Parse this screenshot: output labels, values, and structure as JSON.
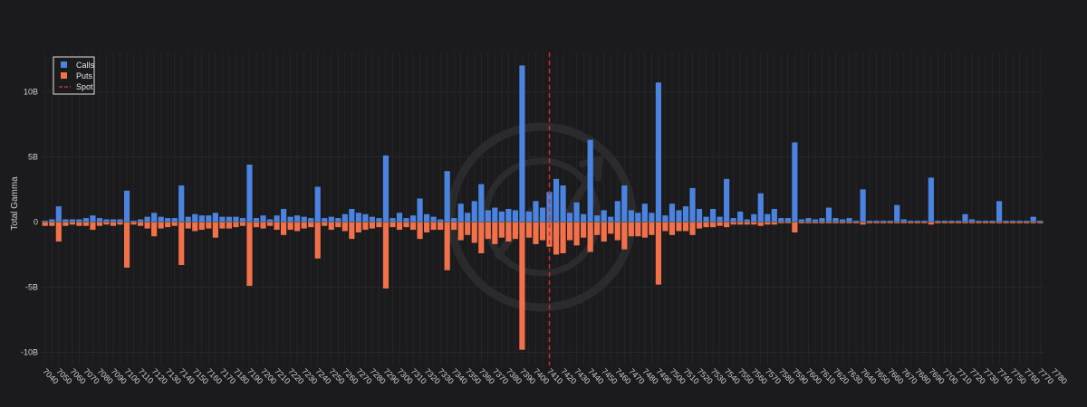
{
  "chart_data": {
    "type": "bar",
    "barmode": "relative",
    "title": "",
    "xlabel": "",
    "ylabel": "Total Gamma",
    "ylim": [
      -11,
      13
    ],
    "yticks": [
      {
        "value": 10,
        "label": "10B"
      },
      {
        "value": 5,
        "label": "5B"
      },
      {
        "value": 0,
        "label": "0"
      },
      {
        "value": -5,
        "label": "-5B"
      },
      {
        "value": -10,
        "label": "-10B"
      }
    ],
    "grid": true,
    "legend_position": "top-left",
    "colors": {
      "calls": "#4a84e0",
      "puts": "#f2714a",
      "spot": "#d42a2a",
      "background": "#1b1b1d",
      "grid": "#2a2a2c"
    },
    "spot": {
      "name": "Spot",
      "value": 7410
    },
    "x_start": 7040,
    "x_step": 5,
    "x_tick_labels": [
      "7040",
      "7050",
      "7060",
      "7070",
      "7080",
      "7090",
      "7100",
      "7110",
      "7120",
      "7130",
      "7140",
      "7150",
      "7160",
      "7170",
      "7180",
      "7190",
      "7200",
      "7210",
      "7220",
      "7230",
      "7240",
      "7250",
      "7260",
      "7270",
      "7280",
      "7290",
      "7300",
      "7310",
      "7320",
      "7330",
      "7340",
      "7350",
      "7360",
      "7370",
      "7380",
      "7390",
      "7400",
      "7410",
      "7420",
      "7430",
      "7440",
      "7450",
      "7460",
      "7470",
      "7480",
      "7490",
      "7500",
      "7510",
      "7520",
      "7530",
      "7540",
      "7550",
      "7560",
      "7570",
      "7580",
      "7590",
      "7600",
      "7610",
      "7620",
      "7630",
      "7640",
      "7650",
      "7660",
      "7670",
      "7680",
      "7690",
      "7700",
      "7710",
      "7720",
      "7730",
      "7740",
      "7750",
      "7760",
      "7770",
      "7780"
    ],
    "series": [
      {
        "name": "Calls",
        "values": [
          0.1,
          0.2,
          1.2,
          0.2,
          0.2,
          0.2,
          0.3,
          0.5,
          0.3,
          0.2,
          0.2,
          0.2,
          2.4,
          0.1,
          0.2,
          0.4,
          0.7,
          0.4,
          0.3,
          0.3,
          2.8,
          0.4,
          0.6,
          0.5,
          0.5,
          0.7,
          0.4,
          0.4,
          0.4,
          0.3,
          4.4,
          0.3,
          0.5,
          0.2,
          0.5,
          1.0,
          0.4,
          0.5,
          0.4,
          0.3,
          2.7,
          0.3,
          0.4,
          0.3,
          0.6,
          1.0,
          0.7,
          0.6,
          0.4,
          0.3,
          5.1,
          0.3,
          0.7,
          0.3,
          0.5,
          1.8,
          0.6,
          0.4,
          0.2,
          3.9,
          0.3,
          1.4,
          0.7,
          1.6,
          2.9,
          0.9,
          1.1,
          0.8,
          1.0,
          0.9,
          12.0,
          0.8,
          1.6,
          1.1,
          2.3,
          3.3,
          2.8,
          0.7,
          1.5,
          0.6,
          6.3,
          0.5,
          0.9,
          0.4,
          1.6,
          2.8,
          0.9,
          0.7,
          1.4,
          0.7,
          10.7,
          0.5,
          1.4,
          0.9,
          1.2,
          2.6,
          1.0,
          0.4,
          1.0,
          0.4,
          3.3,
          0.3,
          0.8,
          0.2,
          0.6,
          2.2,
          0.6,
          1.0,
          0.3,
          0.3,
          6.1,
          0.2,
          0.3,
          0.2,
          0.3,
          1.1,
          0.3,
          0.2,
          0.3,
          0.1,
          2.5,
          0.1,
          0.1,
          0.1,
          0.1,
          1.3,
          0.2,
          0.1,
          0.1,
          0.1,
          3.4,
          0.1,
          0.1,
          0.1,
          0.1,
          0.6,
          0.2,
          0.1,
          0.1,
          0.1,
          1.6,
          0.1,
          0.1,
          0.1,
          0.1,
          0.4,
          0.1
        ]
      },
      {
        "name": "Puts",
        "values": [
          -0.3,
          -0.3,
          -1.5,
          -0.3,
          -0.2,
          -0.3,
          -0.3,
          -0.6,
          -0.3,
          -0.2,
          -0.3,
          -0.2,
          -3.5,
          -0.2,
          -0.3,
          -0.5,
          -1.1,
          -0.5,
          -0.4,
          -0.3,
          -3.3,
          -0.5,
          -0.7,
          -0.6,
          -0.5,
          -1.2,
          -0.5,
          -0.5,
          -0.4,
          -0.3,
          -4.9,
          -0.4,
          -0.5,
          -0.3,
          -0.6,
          -1.0,
          -0.6,
          -0.7,
          -0.5,
          -0.4,
          -2.8,
          -0.3,
          -0.6,
          -0.4,
          -0.7,
          -1.3,
          -0.8,
          -0.6,
          -0.5,
          -0.4,
          -5.1,
          -0.4,
          -0.6,
          -0.4,
          -0.6,
          -1.3,
          -0.8,
          -0.6,
          -0.6,
          -3.7,
          -0.6,
          -1.4,
          -1.0,
          -1.6,
          -2.4,
          -1.3,
          -1.7,
          -1.2,
          -1.5,
          -1.3,
          -9.8,
          -1.2,
          -1.7,
          -1.4,
          -1.9,
          -2.5,
          -2.4,
          -1.4,
          -1.8,
          -1.2,
          -2.3,
          -1.0,
          -1.5,
          -0.9,
          -1.4,
          -2.1,
          -1.1,
          -1.1,
          -1.2,
          -1.0,
          -4.8,
          -0.7,
          -1.0,
          -0.7,
          -0.7,
          -1.0,
          -0.5,
          -0.4,
          -0.4,
          -0.3,
          -0.4,
          -0.2,
          -0.2,
          -0.2,
          -0.2,
          -0.3,
          -0.2,
          -0.2,
          -0.1,
          -0.1,
          -0.8,
          -0.1,
          -0.1,
          -0.1,
          -0.1,
          -0.1,
          -0.1,
          -0.1,
          -0.1,
          -0.1,
          -0.2,
          -0.1,
          -0.1,
          -0.1,
          -0.1,
          -0.1,
          -0.1,
          -0.1,
          -0.1,
          -0.1,
          -0.2,
          -0.1,
          -0.1,
          -0.1,
          -0.1,
          -0.1,
          -0.1,
          -0.1,
          -0.1,
          -0.1,
          -0.1,
          -0.1,
          -0.1,
          -0.1,
          -0.1,
          -0.1,
          -0.1
        ]
      }
    ]
  }
}
